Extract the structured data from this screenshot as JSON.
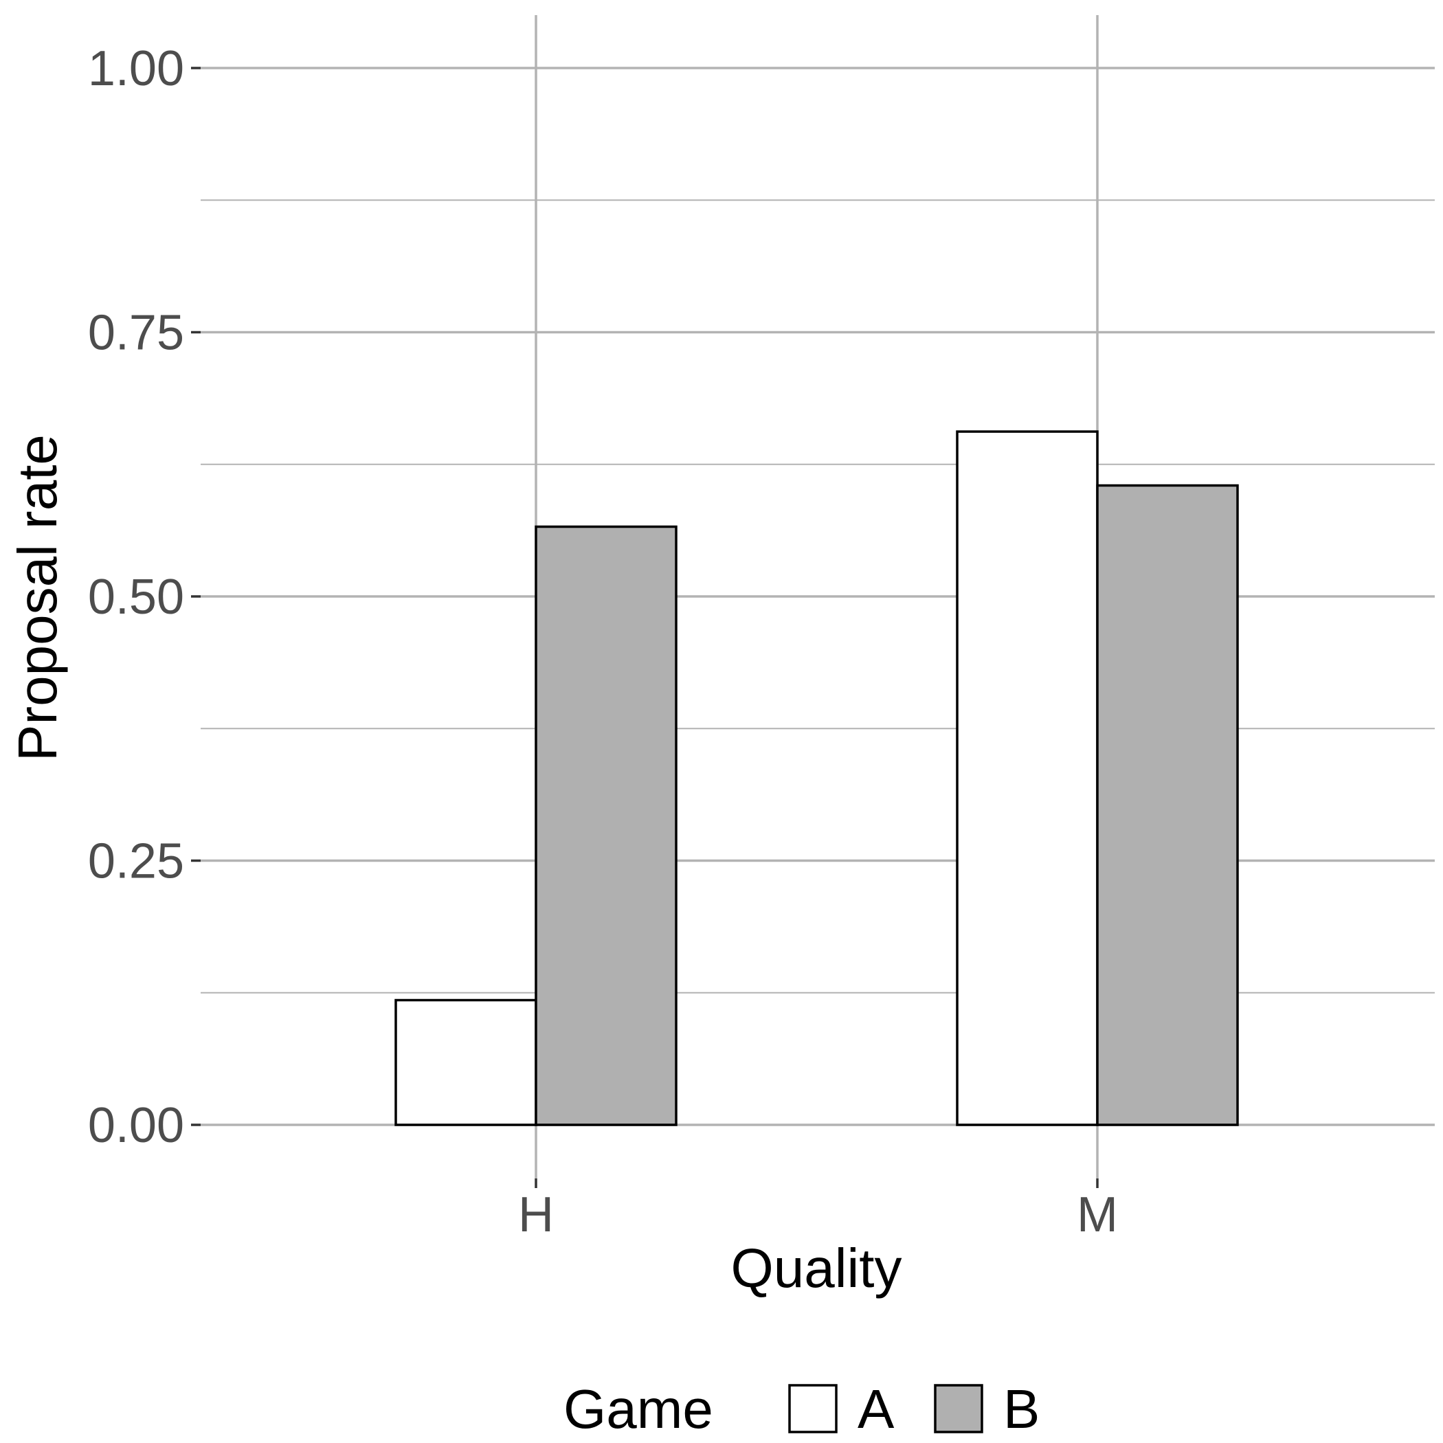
{
  "chart_data": {
    "type": "bar",
    "categories": [
      "H",
      "M"
    ],
    "series": [
      {
        "name": "A",
        "values": [
          0.118,
          0.656
        ],
        "color": "#ffffff"
      },
      {
        "name": "B",
        "values": [
          0.566,
          0.605
        ],
        "color": "#b0b0b0"
      }
    ],
    "xlabel": "Quality",
    "ylabel": "Proposal rate",
    "ylim": [
      0,
      1
    ],
    "yticks": [
      "0.00",
      "0.25",
      "0.50",
      "0.75",
      "1.00"
    ],
    "ytick_values": [
      0,
      0.25,
      0.5,
      0.75,
      1
    ],
    "grid": true,
    "legend": {
      "title": "Game",
      "position": "bottom"
    }
  }
}
